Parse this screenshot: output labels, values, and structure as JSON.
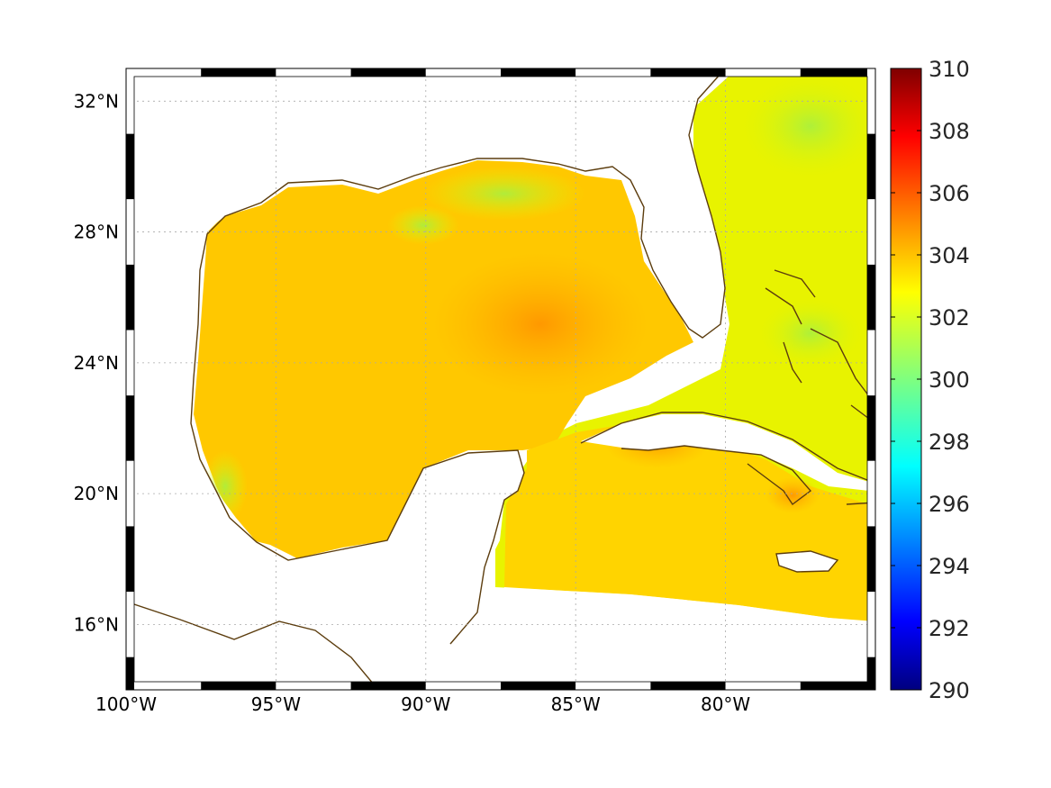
{
  "map": {
    "lon_min": -100,
    "lon_max": -75,
    "lat_min": 14,
    "lat_max": 33,
    "lat_ticks": [
      {
        "value": 32,
        "label": "32°N"
      },
      {
        "value": 28,
        "label": "28°N"
      },
      {
        "value": 24,
        "label": "24°N"
      },
      {
        "value": 20,
        "label": "20°N"
      },
      {
        "value": 16,
        "label": "16°N"
      }
    ],
    "lon_ticks": [
      {
        "value": -100,
        "label": "100°W"
      },
      {
        "value": -95,
        "label": "95°W"
      },
      {
        "value": -90,
        "label": "90°W"
      },
      {
        "value": -85,
        "label": "85°W"
      },
      {
        "value": -80,
        "label": "80°W"
      }
    ],
    "grid": true,
    "land_color": "#ffffff",
    "coastline_color": "#5c3d0e",
    "field_colors": {
      "warm": "#ffbb00",
      "hot": "#ff9a00",
      "mid": "#ffe600",
      "cool": "#b9f23a"
    }
  },
  "colorbar": {
    "min": 290,
    "max": 310,
    "colormap": "jet",
    "ticks": [
      "310",
      "308",
      "306",
      "304",
      "302",
      "300",
      "298",
      "296",
      "294",
      "292",
      "290"
    ]
  }
}
